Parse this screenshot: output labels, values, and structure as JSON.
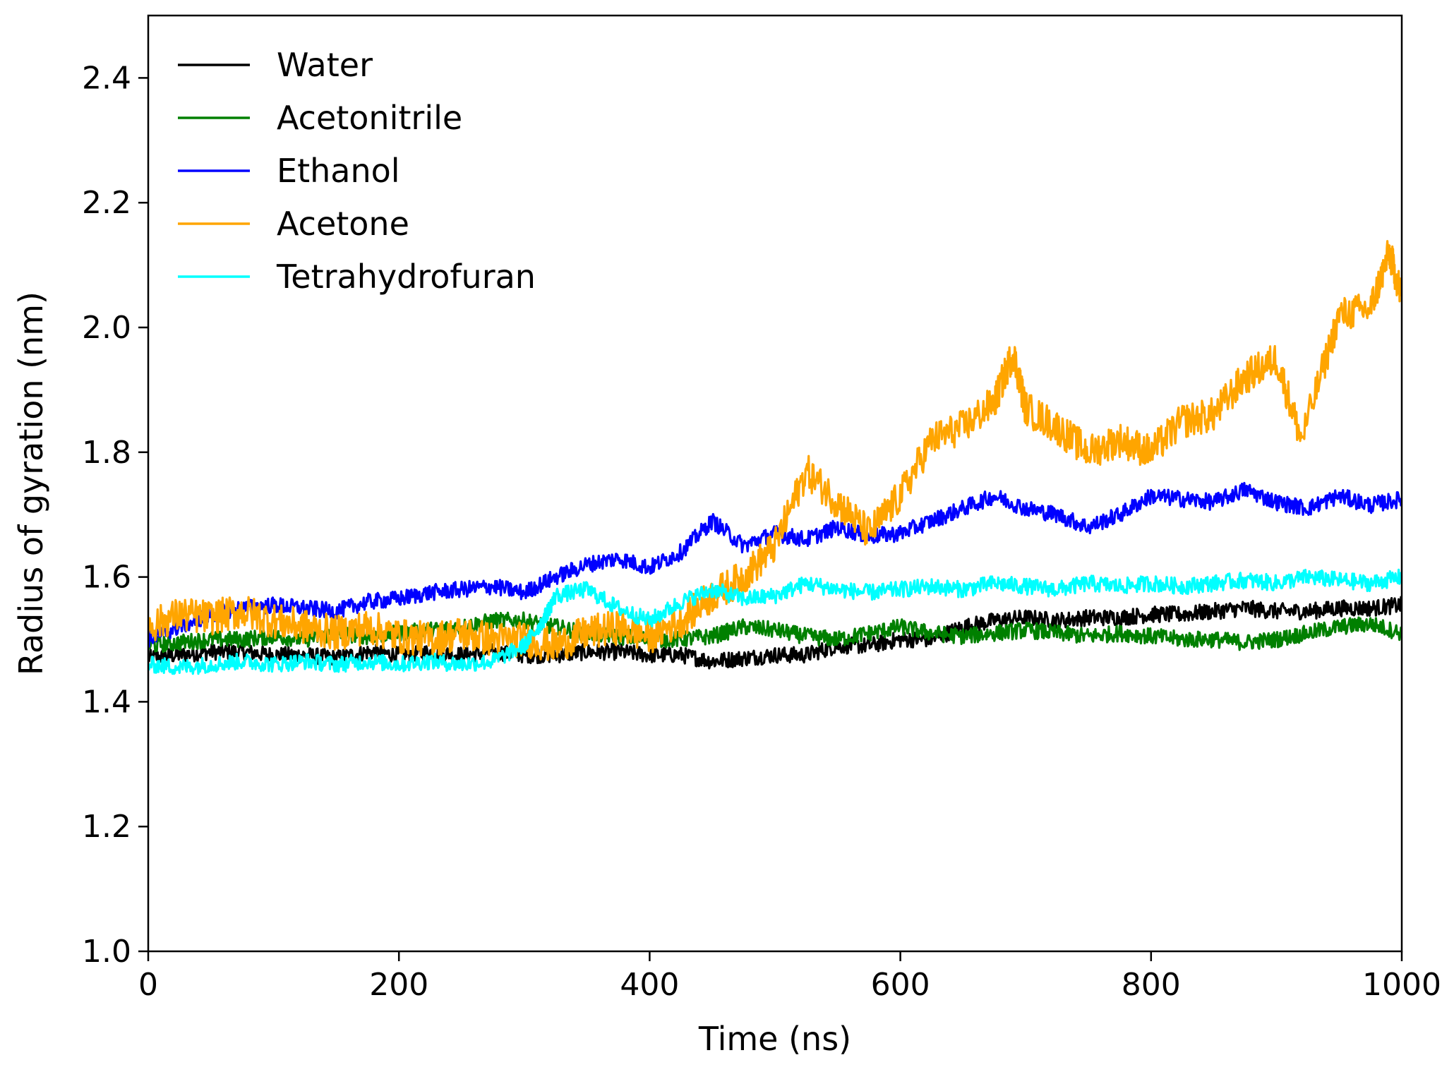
{
  "chart_data": {
    "type": "line",
    "title": "",
    "xlabel": "Time (ns)",
    "ylabel": "Radius of gyration (nm)",
    "xlim": [
      0,
      1000
    ],
    "ylim": [
      1.0,
      2.5
    ],
    "xticks": [
      0,
      200,
      400,
      600,
      800,
      1000
    ],
    "xtick_labels": [
      "0",
      "200",
      "400",
      "600",
      "800",
      "1000"
    ],
    "yticks": [
      1.0,
      1.2,
      1.4,
      1.6,
      1.8,
      2.0,
      2.2,
      2.4
    ],
    "ytick_labels": [
      "1.0",
      "1.2",
      "1.4",
      "1.6",
      "1.8",
      "2.0",
      "2.2",
      "2.4"
    ],
    "grid": false,
    "legend_position": "top-left",
    "series": [
      {
        "name": "Water",
        "color": "#000000",
        "x": [
          0,
          25,
          50,
          75,
          100,
          125,
          150,
          175,
          200,
          225,
          250,
          275,
          300,
          325,
          350,
          375,
          400,
          425,
          450,
          475,
          500,
          525,
          550,
          575,
          600,
          625,
          650,
          675,
          700,
          725,
          750,
          775,
          800,
          825,
          850,
          875,
          900,
          925,
          950,
          975,
          1000
        ],
        "y": [
          1.47,
          1.475,
          1.48,
          1.48,
          1.475,
          1.475,
          1.47,
          1.48,
          1.475,
          1.48,
          1.475,
          1.48,
          1.475,
          1.475,
          1.48,
          1.48,
          1.475,
          1.475,
          1.465,
          1.47,
          1.475,
          1.475,
          1.49,
          1.49,
          1.5,
          1.5,
          1.52,
          1.53,
          1.535,
          1.53,
          1.535,
          1.535,
          1.54,
          1.54,
          1.545,
          1.55,
          1.545,
          1.545,
          1.55,
          1.55,
          1.555
        ]
      },
      {
        "name": "Acetonitrile",
        "color": "#008000",
        "x": [
          0,
          25,
          50,
          75,
          100,
          125,
          150,
          175,
          200,
          225,
          250,
          275,
          300,
          325,
          350,
          375,
          400,
          425,
          450,
          475,
          500,
          525,
          550,
          575,
          600,
          625,
          650,
          675,
          700,
          725,
          750,
          775,
          800,
          825,
          850,
          875,
          900,
          925,
          950,
          975,
          1000
        ],
        "y": [
          1.49,
          1.495,
          1.5,
          1.5,
          1.505,
          1.5,
          1.51,
          1.505,
          1.51,
          1.515,
          1.52,
          1.53,
          1.53,
          1.52,
          1.51,
          1.505,
          1.5,
          1.5,
          1.505,
          1.52,
          1.515,
          1.505,
          1.5,
          1.51,
          1.52,
          1.51,
          1.505,
          1.51,
          1.515,
          1.51,
          1.505,
          1.51,
          1.505,
          1.5,
          1.5,
          1.495,
          1.5,
          1.51,
          1.52,
          1.525,
          1.51
        ]
      },
      {
        "name": "Ethanol",
        "color": "#0000ff",
        "x": [
          0,
          25,
          50,
          75,
          100,
          125,
          150,
          175,
          200,
          225,
          250,
          275,
          300,
          325,
          350,
          375,
          400,
          425,
          450,
          475,
          500,
          525,
          550,
          575,
          600,
          625,
          650,
          675,
          700,
          725,
          750,
          775,
          800,
          825,
          850,
          875,
          900,
          925,
          950,
          975,
          1000
        ],
        "y": [
          1.5,
          1.52,
          1.54,
          1.55,
          1.555,
          1.55,
          1.545,
          1.56,
          1.565,
          1.575,
          1.58,
          1.585,
          1.575,
          1.6,
          1.62,
          1.63,
          1.615,
          1.64,
          1.69,
          1.65,
          1.67,
          1.66,
          1.68,
          1.665,
          1.67,
          1.69,
          1.71,
          1.73,
          1.71,
          1.7,
          1.68,
          1.7,
          1.73,
          1.725,
          1.72,
          1.74,
          1.72,
          1.71,
          1.73,
          1.715,
          1.725
        ]
      },
      {
        "name": "Acetone",
        "color": "#ffa500",
        "x": [
          0,
          25,
          50,
          75,
          100,
          125,
          150,
          175,
          200,
          225,
          250,
          275,
          300,
          325,
          350,
          375,
          400,
          425,
          450,
          475,
          500,
          525,
          550,
          575,
          600,
          625,
          650,
          675,
          690,
          700,
          725,
          750,
          775,
          800,
          825,
          850,
          875,
          900,
          920,
          950,
          975,
          990,
          1000
        ],
        "y": [
          1.52,
          1.54,
          1.535,
          1.545,
          1.53,
          1.52,
          1.51,
          1.52,
          1.505,
          1.5,
          1.51,
          1.5,
          1.5,
          1.49,
          1.51,
          1.52,
          1.505,
          1.53,
          1.57,
          1.6,
          1.65,
          1.77,
          1.72,
          1.67,
          1.73,
          1.82,
          1.84,
          1.88,
          1.96,
          1.87,
          1.84,
          1.8,
          1.82,
          1.8,
          1.85,
          1.86,
          1.92,
          1.95,
          1.82,
          2.02,
          2.03,
          2.12,
          2.05
        ]
      },
      {
        "name": "Tetrahydrofuran",
        "color": "#00ffff",
        "x": [
          0,
          25,
          50,
          75,
          100,
          125,
          150,
          175,
          200,
          225,
          250,
          275,
          300,
          315,
          325,
          350,
          375,
          400,
          425,
          450,
          475,
          500,
          525,
          550,
          575,
          600,
          625,
          650,
          675,
          700,
          725,
          750,
          775,
          800,
          825,
          850,
          875,
          900,
          925,
          950,
          975,
          1000
        ],
        "y": [
          1.46,
          1.455,
          1.46,
          1.465,
          1.46,
          1.465,
          1.46,
          1.465,
          1.46,
          1.465,
          1.46,
          1.465,
          1.49,
          1.53,
          1.57,
          1.58,
          1.55,
          1.53,
          1.56,
          1.58,
          1.565,
          1.57,
          1.59,
          1.58,
          1.575,
          1.58,
          1.585,
          1.58,
          1.59,
          1.585,
          1.58,
          1.59,
          1.585,
          1.59,
          1.585,
          1.59,
          1.595,
          1.59,
          1.6,
          1.595,
          1.59,
          1.6
        ]
      }
    ]
  }
}
